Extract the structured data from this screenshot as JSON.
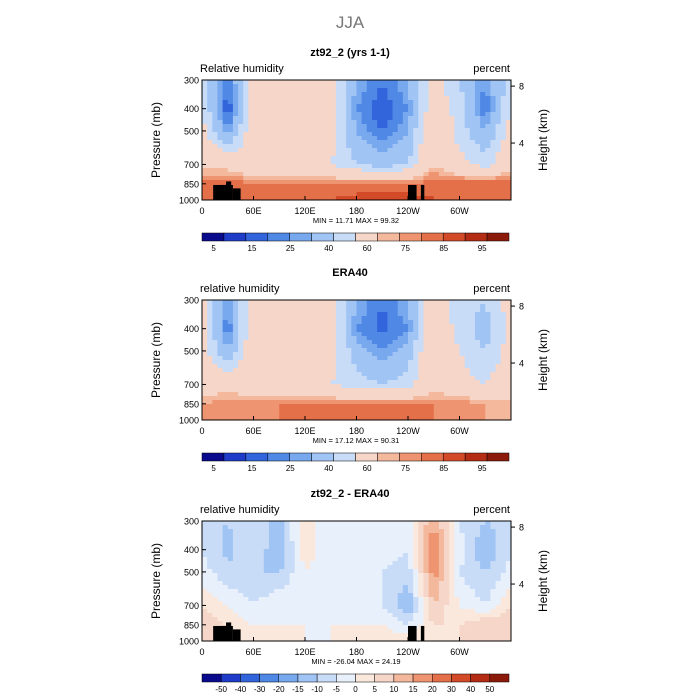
{
  "figure": {
    "title": "JJA"
  },
  "palettes": {
    "rh": [
      "#0a0a8c",
      "#1e3cc8",
      "#3264dc",
      "#5088e6",
      "#78a8ee",
      "#a0c4f4",
      "#c8dcf8",
      "#f6d6c8",
      "#f4b89c",
      "#ee9470",
      "#e4704a",
      "#d24a28",
      "#b42c14",
      "#8c1a0a"
    ],
    "diff": [
      "#0a0a8c",
      "#1e3cc8",
      "#3264dc",
      "#5088e6",
      "#78a8ee",
      "#a0c4f4",
      "#c8dcf8",
      "#e8f0fc",
      "#fbe8dc",
      "#f6d6c8",
      "#f4b89c",
      "#ee9470",
      "#e4704a",
      "#d24a28",
      "#b42c14",
      "#8c1a0a"
    ]
  },
  "panels": [
    {
      "title": "zt92_2 (yrs 1-1)",
      "left_label": "Relative humidity",
      "right_label": "percent",
      "stats_text": "MIN =   11.71   MAX =   99.32",
      "palette": "rh",
      "colorbar_labels": [
        "5",
        "15",
        "25",
        "40",
        "60",
        "75",
        "85",
        "95"
      ],
      "show_terrain": true
    },
    {
      "title": "ERA40",
      "left_label": "relative humidity",
      "right_label": "percent",
      "stats_text": "MIN =   17.12   MAX =   90.31",
      "palette": "rh",
      "colorbar_labels": [
        "5",
        "15",
        "25",
        "40",
        "60",
        "75",
        "85",
        "95"
      ],
      "show_terrain": false
    },
    {
      "title": "zt92_2 - ERA40",
      "left_label": "relative humidity",
      "right_label": "percent",
      "stats_text": "MIN =  -26.04   MAX =   24.19",
      "palette": "diff",
      "colorbar_labels": [
        "-50",
        "-40",
        "-30",
        "-20",
        "-15",
        "-10",
        "-5",
        "0",
        "5",
        "10",
        "15",
        "20",
        "30",
        "40",
        "50"
      ],
      "show_terrain": true
    }
  ],
  "axes": {
    "ylabel": "Pressure (mb)",
    "y2label": "Height (km)",
    "x_ticks": [
      "0",
      "60E",
      "120E",
      "180",
      "120W",
      "60W"
    ],
    "x_tick_lon": [
      0,
      60,
      120,
      180,
      240,
      300
    ],
    "y_ticks": [
      "300",
      "400",
      "500",
      "700",
      "850",
      "1000"
    ],
    "y_tick_p": [
      300,
      400,
      500,
      700,
      850,
      1000
    ],
    "y2_ticks": [
      "8",
      "4"
    ],
    "y2_tick_km": [
      8,
      4
    ]
  },
  "chart_data": [
    {
      "type": "heatmap",
      "title": "zt92_2 (yrs 1-1)",
      "variable": "Relative humidity",
      "units": "percent",
      "xlabel": "",
      "ylabel": "Pressure (mb)",
      "xlim": [
        0,
        360
      ],
      "ylim": [
        1000,
        300
      ],
      "log_pressure_axis": true,
      "x": [
        0,
        30,
        60,
        90,
        120,
        150,
        180,
        210,
        240,
        270,
        300,
        330,
        360
      ],
      "y": [
        300,
        400,
        500,
        700,
        850,
        1000
      ],
      "min": 11.71,
      "max": 99.32,
      "values": [
        [
          45,
          20,
          55,
          60,
          65,
          55,
          30,
          20,
          30,
          55,
          40,
          25,
          45
        ],
        [
          50,
          15,
          55,
          60,
          65,
          55,
          25,
          15,
          25,
          60,
          45,
          20,
          50
        ],
        [
          55,
          25,
          60,
          62,
          65,
          55,
          30,
          20,
          30,
          65,
          45,
          30,
          55
        ],
        [
          65,
          65,
          55,
          50,
          55,
          50,
          40,
          35,
          40,
          70,
          55,
          45,
          65
        ],
        [
          85,
          85,
          80,
          80,
          80,
          80,
          80,
          80,
          80,
          85,
          85,
          85,
          85
        ],
        [
          80,
          80,
          85,
          85,
          85,
          85,
          88,
          90,
          88,
          85,
          85,
          85,
          80
        ]
      ]
    },
    {
      "type": "heatmap",
      "title": "ERA40",
      "variable": "relative humidity",
      "units": "percent",
      "xlabel": "",
      "ylabel": "Pressure (mb)",
      "xlim": [
        0,
        360
      ],
      "ylim": [
        1000,
        300
      ],
      "log_pressure_axis": true,
      "x": [
        0,
        30,
        60,
        90,
        120,
        150,
        180,
        210,
        240,
        270,
        300,
        330,
        360
      ],
      "y": [
        300,
        400,
        500,
        700,
        850,
        1000
      ],
      "min": 17.12,
      "max": 90.31,
      "values": [
        [
          55,
          25,
          60,
          62,
          60,
          55,
          30,
          20,
          30,
          60,
          45,
          40,
          55
        ],
        [
          55,
          20,
          60,
          62,
          62,
          55,
          25,
          18,
          25,
          62,
          45,
          35,
          55
        ],
        [
          55,
          30,
          62,
          60,
          65,
          55,
          35,
          25,
          35,
          65,
          50,
          40,
          55
        ],
        [
          60,
          65,
          55,
          50,
          60,
          50,
          45,
          40,
          45,
          65,
          55,
          50,
          60
        ],
        [
          75,
          80,
          80,
          80,
          80,
          80,
          80,
          80,
          80,
          80,
          80,
          75,
          75
        ],
        [
          75,
          75,
          80,
          80,
          85,
          85,
          85,
          85,
          85,
          80,
          80,
          75,
          75
        ]
      ]
    },
    {
      "type": "heatmap",
      "title": "zt92_2 - ERA40",
      "variable": "relative humidity",
      "units": "percent",
      "xlabel": "",
      "ylabel": "Pressure (mb)",
      "xlim": [
        0,
        360
      ],
      "ylim": [
        1000,
        300
      ],
      "log_pressure_axis": true,
      "x": [
        0,
        30,
        60,
        90,
        120,
        150,
        180,
        210,
        240,
        270,
        300,
        330,
        360
      ],
      "y": [
        300,
        400,
        500,
        700,
        850,
        1000
      ],
      "min": -26.04,
      "max": 24.19,
      "values": [
        [
          -8,
          -10,
          -5,
          -12,
          5,
          -5,
          -3,
          0,
          -3,
          15,
          -5,
          -10,
          -8
        ],
        [
          -5,
          -12,
          -5,
          -15,
          3,
          -3,
          -5,
          -3,
          -5,
          20,
          -3,
          -15,
          -5
        ],
        [
          -3,
          -8,
          -10,
          -10,
          0,
          -5,
          -3,
          -5,
          -8,
          18,
          -5,
          -10,
          -3
        ],
        [
          5,
          0,
          -5,
          0,
          -5,
          0,
          -5,
          -5,
          -15,
          10,
          0,
          -5,
          5
        ],
        [
          10,
          5,
          0,
          0,
          0,
          0,
          0,
          0,
          -5,
          5,
          5,
          10,
          10
        ],
        [
          5,
          5,
          5,
          5,
          0,
          0,
          3,
          5,
          3,
          5,
          5,
          10,
          5
        ]
      ]
    }
  ]
}
